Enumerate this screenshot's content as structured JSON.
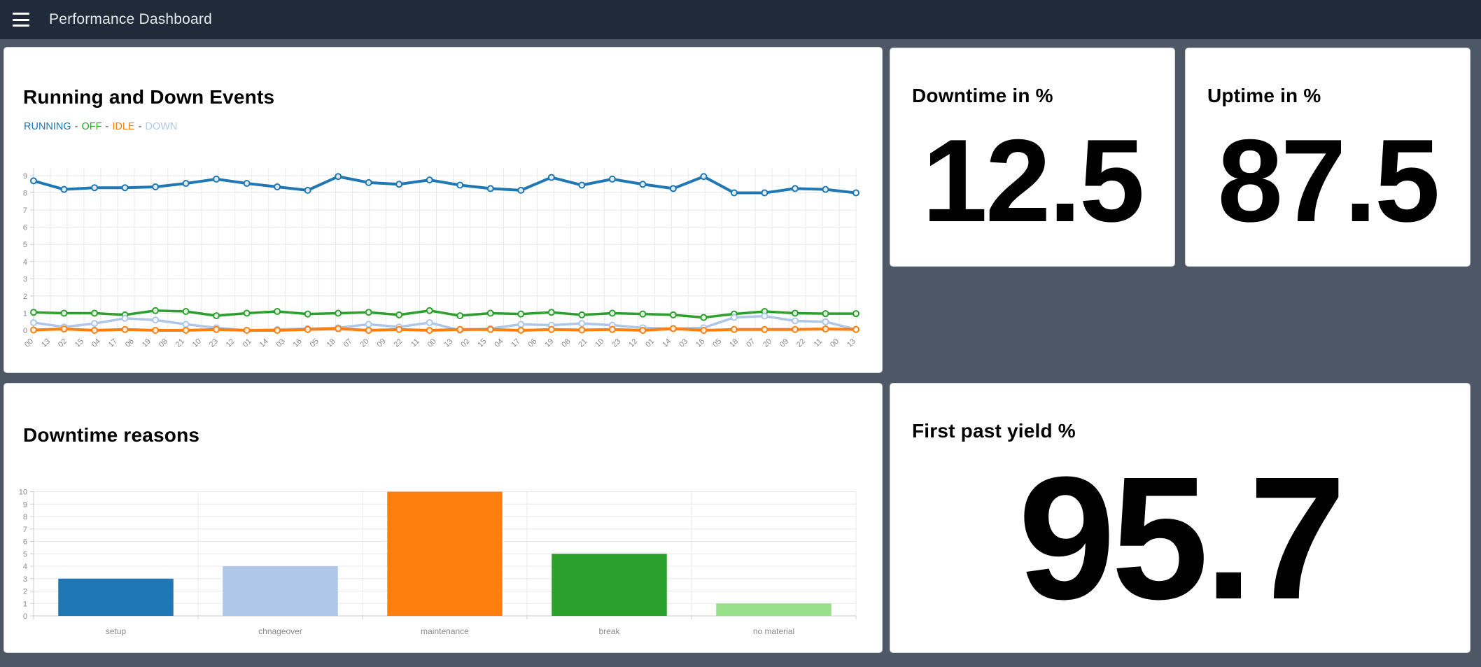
{
  "navbar": {
    "title": "Performance Dashboard",
    "menu_icon": "hamburger-icon"
  },
  "cards": {
    "running": {
      "title": "Running and Down Events"
    },
    "downtime": {
      "title": "Downtime in %",
      "value": "12.5"
    },
    "uptime": {
      "title": "Uptime in %",
      "value": "87.5"
    },
    "reasons": {
      "title": "Downtime reasons"
    },
    "fpy": {
      "title": "First past yield %",
      "value": "95.7"
    }
  },
  "colors": {
    "navbar_bg": "#212a38",
    "page_bg": "#4e5765",
    "card_bg": "#ffffff",
    "grid": "#e8e8e8",
    "axis": "#cccccc",
    "tick_label": "#888888",
    "legend_separator": "#3b3f45",
    "running_blue": "#1f77b4",
    "off_green": "#2ca02c",
    "idle_orange": "#ff7f0e",
    "down_lightblue": "#aec7e8",
    "light_green": "#98df8a"
  },
  "chart_data": [
    {
      "id": "events",
      "type": "line",
      "title": "Running and Down Events",
      "legend_position": "top-left",
      "legend_separator": "-",
      "grid": true,
      "ylim": [
        0,
        9.6
      ],
      "yticks": [
        0,
        1,
        2,
        3,
        4,
        5,
        6,
        7,
        8,
        9
      ],
      "x_labels": [
        "00",
        "13",
        "02",
        "15",
        "04",
        "17",
        "06",
        "19",
        "08",
        "21",
        "10",
        "23",
        "12",
        "01",
        "14",
        "03",
        "16",
        "05",
        "18",
        "07",
        "20",
        "09",
        "22",
        "11",
        "00",
        "13",
        "02",
        "15",
        "04",
        "17",
        "06",
        "19",
        "08",
        "21",
        "10",
        "23",
        "12",
        "01",
        "14",
        "03",
        "16",
        "05",
        "18",
        "07",
        "20",
        "09",
        "22",
        "11",
        "00",
        "13"
      ],
      "series": [
        {
          "name": "RUNNING",
          "color": "#1f77b4",
          "width": 4,
          "values": [
            8.7,
            8.2,
            8.3,
            8.3,
            8.35,
            8.55,
            8.8,
            8.55,
            8.35,
            8.15,
            8.95,
            8.6,
            8.5,
            8.75,
            8.45,
            8.25,
            8.15,
            8.9,
            8.45,
            8.8,
            8.5,
            8.25,
            8.95,
            8.0,
            8.0,
            8.25,
            8.2,
            8.0
          ]
        },
        {
          "name": "OFF",
          "color": "#2ca02c",
          "width": 3.5,
          "values": [
            1.05,
            1.0,
            1.0,
            0.9,
            1.15,
            1.1,
            0.85,
            1.0,
            1.1,
            0.95,
            1.0,
            1.05,
            0.9,
            1.15,
            0.85,
            1.0,
            0.95,
            1.05,
            0.9,
            1.0,
            0.95,
            0.9,
            0.75,
            0.95,
            1.1,
            1.0,
            0.97,
            0.97
          ]
        },
        {
          "name": "DOWN",
          "color": "#aec7e8",
          "width": 3.5,
          "values": [
            0.45,
            0.2,
            0.4,
            0.7,
            0.6,
            0.35,
            0.15,
            0.0,
            0.05,
            0.1,
            0.15,
            0.35,
            0.2,
            0.45,
            0.0,
            0.1,
            0.35,
            0.3,
            0.4,
            0.3,
            0.15,
            0.1,
            0.15,
            0.75,
            0.83,
            0.55,
            0.5,
            0.05
          ]
        },
        {
          "name": "IDLE",
          "color": "#ff7f0e",
          "width": 4,
          "values": [
            0.02,
            0.08,
            0.0,
            0.05,
            0.0,
            0.0,
            0.05,
            0.0,
            0.0,
            0.05,
            0.1,
            0.0,
            0.05,
            0.0,
            0.05,
            0.05,
            0.0,
            0.05,
            0.02,
            0.05,
            0.0,
            0.1,
            0.0,
            0.05,
            0.05,
            0.05,
            0.08,
            0.05
          ]
        }
      ],
      "legend_order": [
        "RUNNING",
        "OFF",
        "IDLE",
        "DOWN"
      ]
    },
    {
      "id": "reasons",
      "type": "bar",
      "title": "Downtime reasons",
      "grid": true,
      "ylim": [
        0,
        10
      ],
      "yticks": [
        0,
        1,
        2,
        3,
        4,
        5,
        6,
        7,
        8,
        9,
        10
      ],
      "categories": [
        "setup",
        "chnageover",
        "maintenance",
        "break",
        "no material"
      ],
      "values": [
        3,
        4,
        10,
        5,
        1
      ],
      "bar_colors": [
        "#1f77b4",
        "#aec7e8",
        "#ff7f0e",
        "#2ca02c",
        "#98df8a"
      ]
    }
  ]
}
